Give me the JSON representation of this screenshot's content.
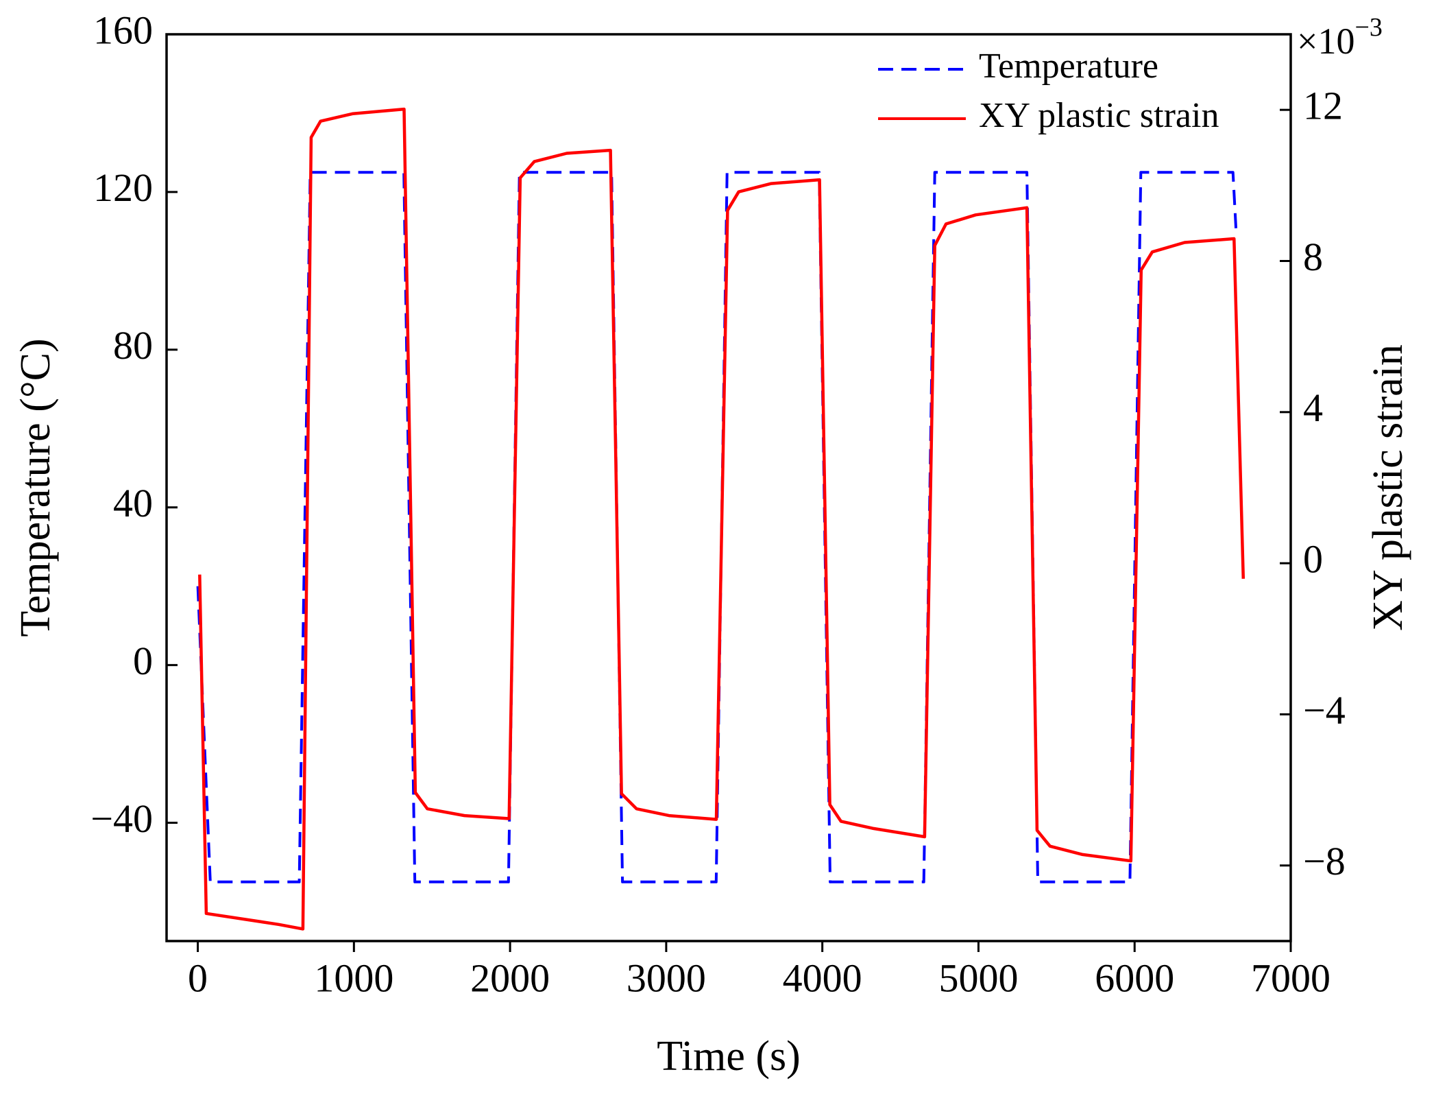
{
  "chart_data": {
    "type": "line",
    "xlabel": "Time (s)",
    "ylabel": "Temperature (°C)",
    "y2label": "XY plastic strain",
    "y2_multiplier": {
      "base": "×10",
      "exponent": "−3"
    },
    "xlim": [
      -200,
      7000
    ],
    "xticks": [
      0,
      1000,
      2000,
      3000,
      4000,
      5000,
      6000,
      7000
    ],
    "ylim": [
      -70,
      160
    ],
    "yticks": [
      {
        "value": -40,
        "label": "−40"
      },
      0,
      40,
      80,
      120,
      160
    ],
    "y2lim": [
      -10,
      14
    ],
    "y2ticks": [
      {
        "value": -8,
        "label": "−8"
      },
      {
        "value": -4,
        "label": "−4"
      },
      0,
      4,
      8,
      12
    ],
    "legend": "upper right",
    "series": [
      {
        "name": "Temperature",
        "color": "#0000ff",
        "dash": true,
        "x": [
          0,
          80,
          650,
          720,
          1320,
          1390,
          1990,
          2060,
          2650,
          2720,
          3320,
          3390,
          3980,
          4050,
          4650,
          4720,
          5310,
          5380,
          5970,
          6040,
          6630,
          6650
        ],
        "values": [
          20,
          -55,
          -55,
          125,
          125,
          -55,
          -55,
          125,
          125,
          -55,
          -55,
          125,
          125,
          -55,
          -55,
          125,
          125,
          -55,
          -55,
          125,
          125,
          110
        ]
      },
      {
        "name": "XY plastic strain",
        "color": "#ff0000",
        "axis": "y2",
        "x": [
          12,
          54,
          518,
          673,
          726,
          786,
          994,
          1321,
          1393,
          1470,
          1708,
          1994,
          2065,
          2155,
          2363,
          2643,
          2714,
          2810,
          3018,
          3321,
          3393,
          3464,
          3673,
          3982,
          4048,
          4119,
          4327,
          4655,
          4720,
          4792,
          4982,
          5310,
          5375,
          5458,
          5667,
          5976,
          6042,
          6113,
          6321,
          6637,
          6696
        ],
        "values": [
          -0.3,
          -9.27,
          -9.56,
          -9.68,
          11.27,
          11.7,
          11.9,
          12.02,
          -6.07,
          -6.5,
          -6.68,
          -6.76,
          10.2,
          10.63,
          10.85,
          10.93,
          -6.1,
          -6.5,
          -6.68,
          -6.78,
          9.34,
          9.83,
          10.05,
          10.15,
          -6.39,
          -6.83,
          -7.02,
          -7.24,
          8.41,
          8.98,
          9.22,
          9.41,
          -7.07,
          -7.49,
          -7.71,
          -7.88,
          7.76,
          8.24,
          8.49,
          8.59,
          -0.41
        ]
      }
    ]
  }
}
